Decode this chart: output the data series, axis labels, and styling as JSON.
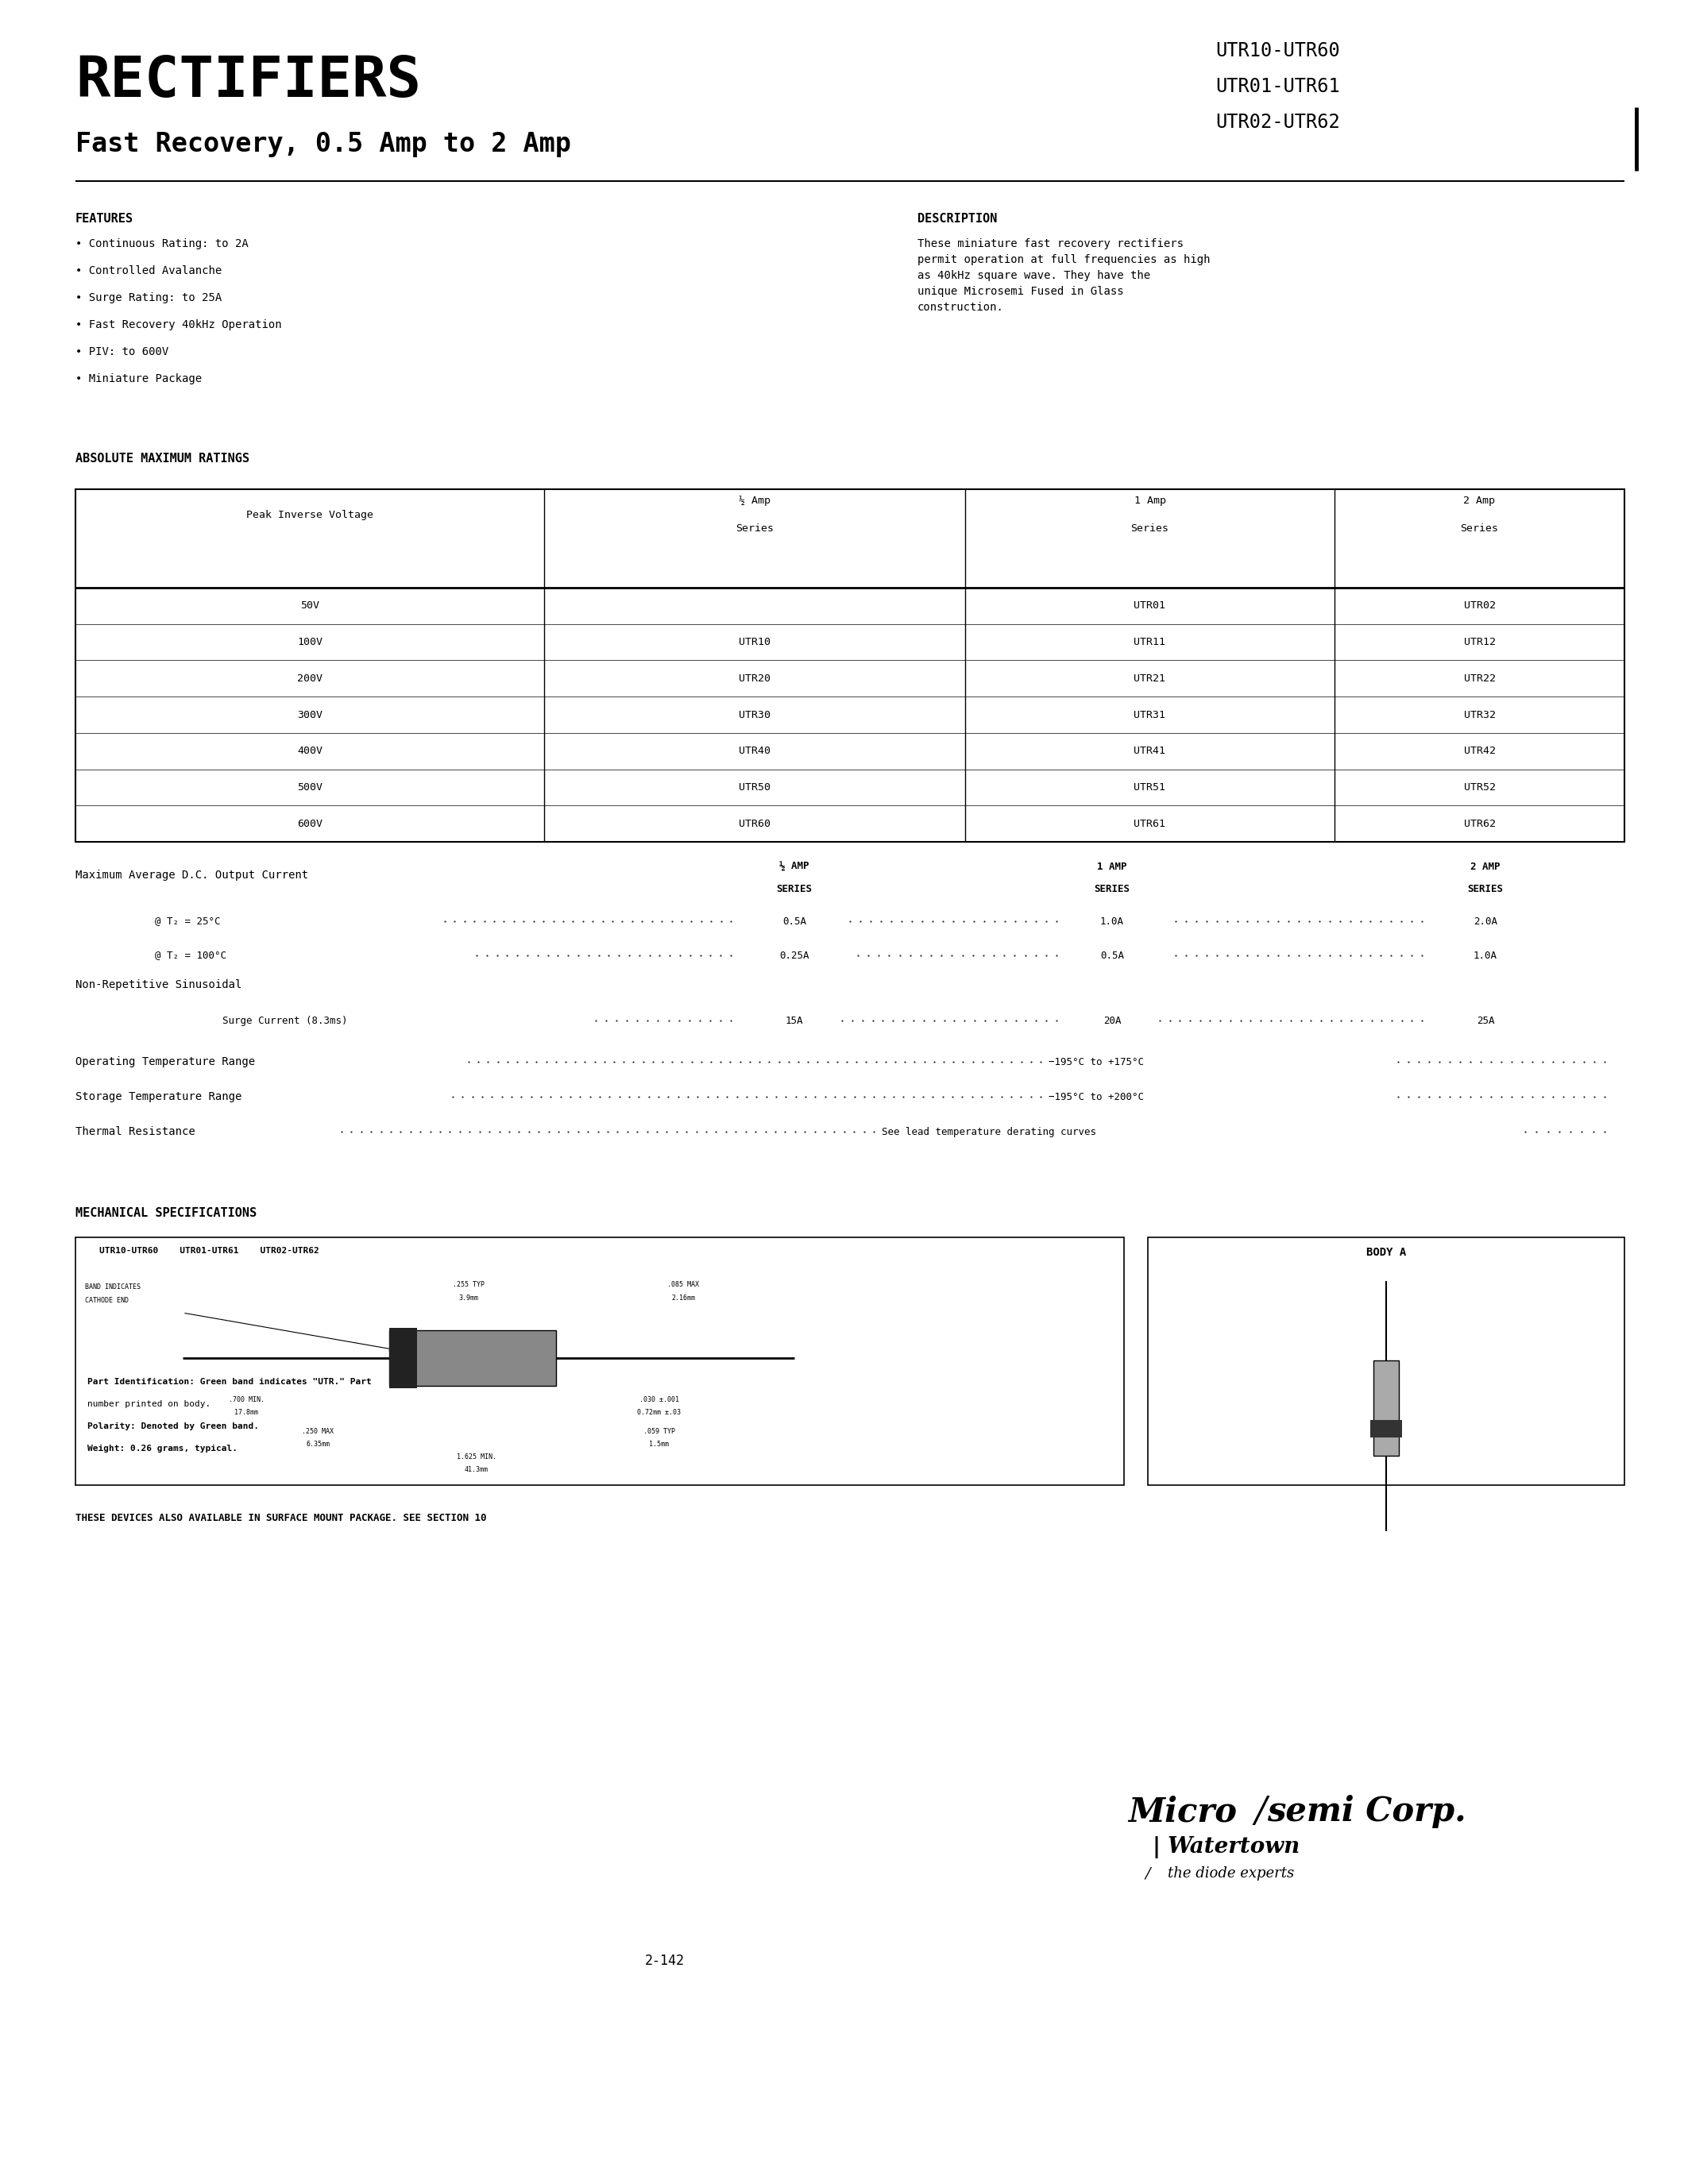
{
  "bg_color": "#ffffff",
  "title_rectifiers": "RECTIFIERS",
  "title_subtitle": "Fast Recovery, 0.5 Amp to 2 Amp",
  "part_numbers": [
    "UTR10-UTR60",
    "UTR01-UTR61",
    "UTR02-UTR62"
  ],
  "features_title": "FEATURES",
  "features": [
    "• Continuous Rating: to 2A",
    "• Controlled Avalanche",
    "• Surge Rating: to 25A",
    "• Fast Recovery 40kHz Operation",
    "• PIV: to 600V",
    "• Miniature Package"
  ],
  "description_title": "DESCRIPTION",
  "description_text": "These miniature fast recovery rectifiers\npermit operation at full frequencies as high\nas 40kHz square wave. They have the\nunique Microsemi Fused in Glass\nconstruction.",
  "abs_max_title": "ABSOLUTE MAXIMUM RATINGS",
  "table_data": [
    [
      "50V",
      "",
      "UTR01",
      "UTR02"
    ],
    [
      "100V",
      "UTR10",
      "UTR11",
      "UTR12"
    ],
    [
      "200V",
      "UTR20",
      "UTR21",
      "UTR22"
    ],
    [
      "300V",
      "UTR30",
      "UTR31",
      "UTR32"
    ],
    [
      "400V",
      "UTR40",
      "UTR41",
      "UTR42"
    ],
    [
      "500V",
      "UTR50",
      "UTR51",
      "UTR52"
    ],
    [
      "600V",
      "UTR60",
      "UTR61",
      "UTR62"
    ]
  ],
  "ratings_label": "Maximum Average D.C. Output Current",
  "non_rep_label": "Non-Repetitive Sinusoidal",
  "surge_label": "Surge Current (8.3ms)",
  "op_temp_label": "Operating Temperature Range",
  "op_temp_value": "−195°C to +175°C",
  "stor_temp_label": "Storage Temperature Range",
  "stor_temp_value": "−195°C to +200°C",
  "thermal_label": "Thermal Resistance",
  "thermal_value": "See lead temperature derating curves",
  "mech_spec_title": "MECHANICAL SPECIFICATIONS",
  "mech_box1_title": "UTR10-UTR60    UTR01-UTR61    UTR02-UTR62",
  "mech_box2_title": "BODY A",
  "mech_notes": [
    [
      "Part Identification: Green band indicates \"UTR.\" Part",
      "bold"
    ],
    [
      "number printed on body.",
      "normal"
    ],
    [
      "Polarity: Denoted by Green band.",
      "bold"
    ],
    [
      "Weight: 0.26 grams, typical.",
      "bold"
    ]
  ],
  "surface_mount_note": "THESE DEVICES ALSO AVAILABLE IN SURFACE MOUNT PACKAGE. SEE SECTION 10",
  "page_number": "2-142",
  "company_location": "Watertown",
  "company_tagline": "the diode experts"
}
